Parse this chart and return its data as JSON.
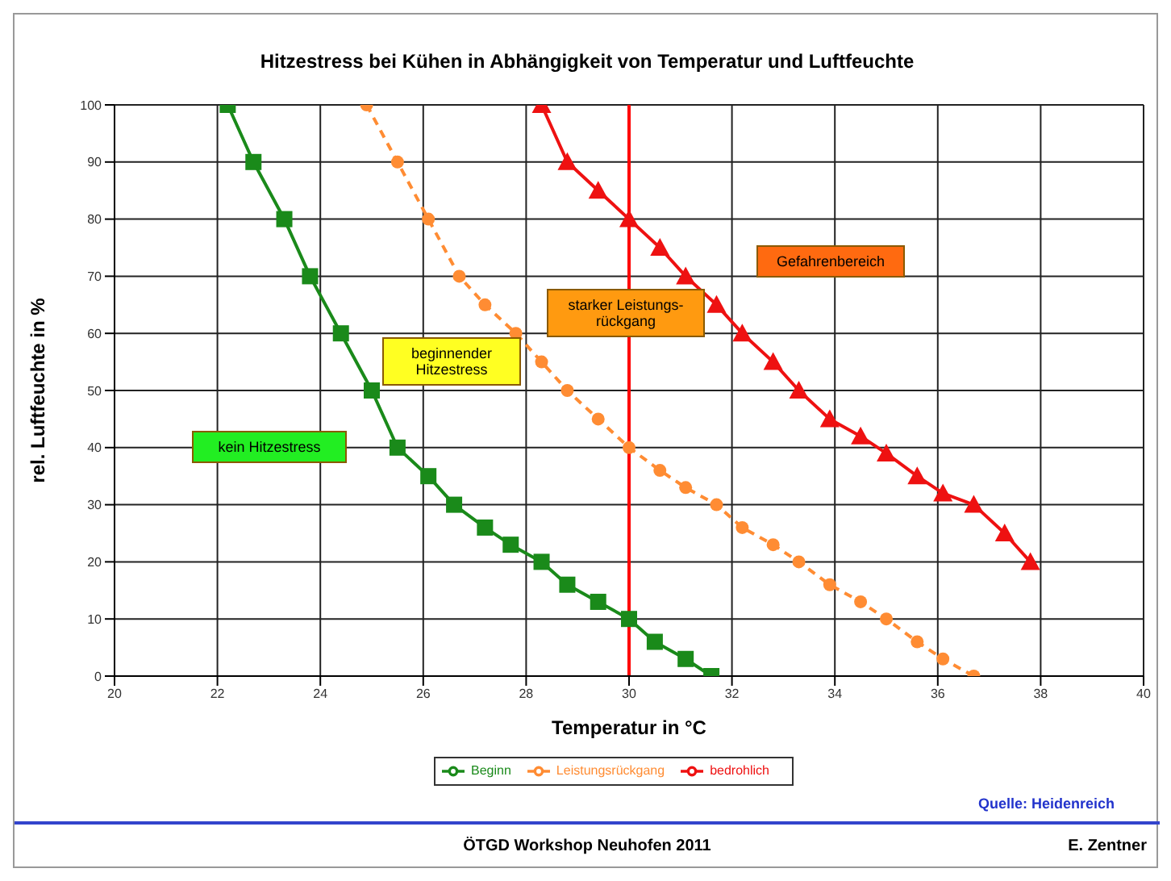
{
  "chart_data": {
    "type": "line",
    "title": "Hitzestress bei Kühen in Abhängigkeit von Temperatur und Luftfeuchte",
    "xlabel": "Temperatur in °C",
    "ylabel": "rel. Luftfeuchte in %",
    "xlim": [
      20,
      40
    ],
    "xticks": [
      20,
      22,
      24,
      26,
      28,
      30,
      32,
      34,
      36,
      38,
      40
    ],
    "ylim": [
      0,
      100
    ],
    "yticks": [
      0,
      10,
      20,
      30,
      40,
      50,
      60,
      70,
      80,
      90,
      100
    ],
    "grid": true,
    "legend": "bottom",
    "series": [
      {
        "name": "Beginn",
        "color": "#1a8a1a",
        "marker": "square",
        "line_style": "solid",
        "x": [
          22.2,
          22.7,
          23.3,
          23.8,
          24.4,
          25.0,
          25.5,
          26.1,
          26.6,
          27.2,
          27.7,
          28.3,
          28.8,
          29.4,
          30.0,
          30.5,
          31.1,
          31.6
        ],
        "values": [
          100,
          90,
          80,
          70,
          60,
          50,
          40,
          35,
          30,
          26,
          23,
          20,
          16,
          13,
          10,
          6,
          3,
          0
        ]
      },
      {
        "name": "Leistungsrückgang",
        "color": "#ff8c33",
        "marker": "circle",
        "line_style": "dashed",
        "x": [
          24.9,
          25.5,
          26.1,
          26.7,
          27.2,
          27.8,
          28.3,
          28.8,
          29.4,
          30.0,
          30.6,
          31.1,
          31.7,
          32.2,
          32.8,
          33.3,
          33.9,
          34.5,
          35.0,
          35.6,
          36.1,
          36.7
        ],
        "values": [
          100,
          90,
          80,
          70,
          65,
          60,
          55,
          50,
          45,
          40,
          36,
          33,
          30,
          26,
          23,
          20,
          16,
          13,
          10,
          6,
          3,
          0
        ]
      },
      {
        "name": "bedrohlich",
        "color": "#ee1111",
        "marker": "triangle",
        "line_style": "solid",
        "x": [
          28.3,
          28.8,
          29.4,
          30.0,
          30.6,
          31.1,
          31.7,
          32.2,
          32.8,
          33.3,
          33.9,
          34.5,
          35.0,
          35.6,
          36.1,
          36.7,
          37.3,
          37.8
        ],
        "values": [
          100,
          90,
          85,
          80,
          75,
          70,
          65,
          60,
          55,
          50,
          45,
          42,
          39,
          35,
          32,
          30,
          25,
          20
        ]
      }
    ],
    "ref_lines": [
      {
        "axis": "x",
        "value": 30,
        "color": "#ff0000"
      }
    ],
    "annotations": [
      "kein Hitzestress",
      "beginnender Hitzestress",
      "starker Leistungs-rückgang",
      "Gefahrenbereich",
      "Quelle: Heidenreich",
      "ÖTGD Workshop Neuhofen 2011",
      "E. Zentner"
    ]
  }
}
